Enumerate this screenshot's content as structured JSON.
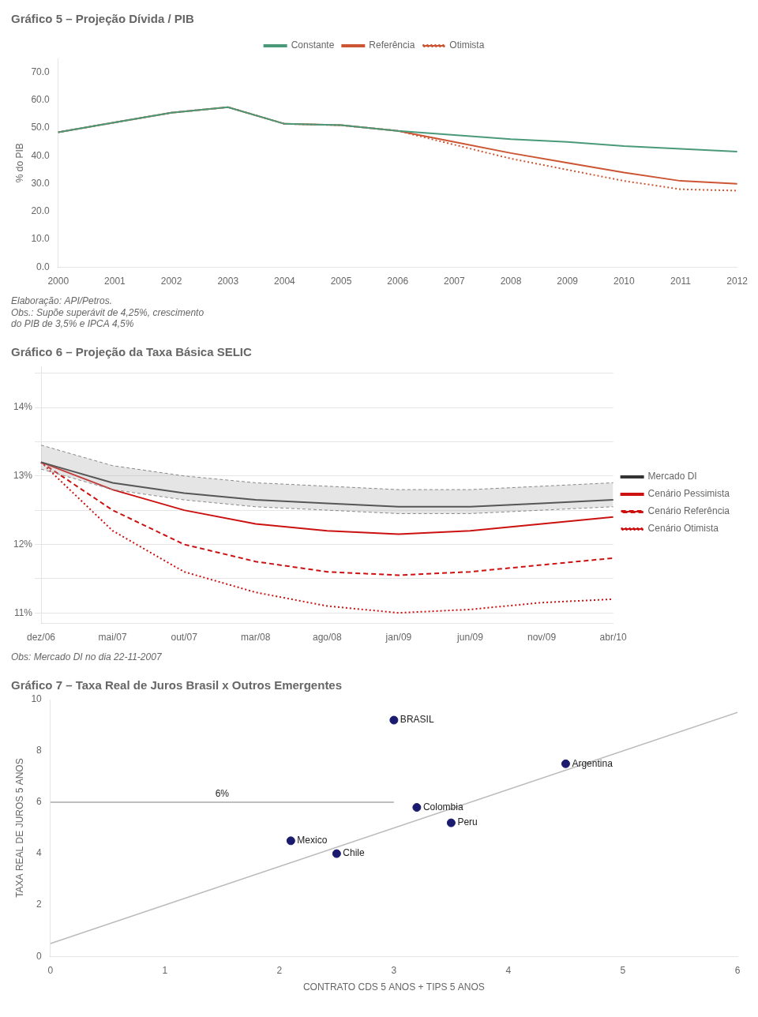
{
  "chart_data": [
    {
      "type": "line",
      "title": "Gráfico 5 – Projeção Dívida / PIB",
      "subtitle": [
        "Elaboração: API/Petros.",
        "Obs.: Supõe superávit de 4,25%, crescimento\ndo PIB de 3,5% e IPCA 4,5%"
      ],
      "ylabel": "% do PIB",
      "categories": [
        2000,
        2001,
        2002,
        2003,
        2004,
        2005,
        2006,
        2007,
        2008,
        2009,
        2010,
        2011,
        2012
      ],
      "series": [
        {
          "name": "Constante",
          "color": "#4a9a7a",
          "line_style": "solid",
          "values": [
            48.5,
            52.0,
            55.5,
            57.5,
            51.5,
            51.0,
            49.0,
            47.5,
            46.0,
            45.0,
            43.5,
            42.5,
            41.5
          ]
        },
        {
          "name": "Referência",
          "color": "#cc5533",
          "line_style": "solid",
          "values": [
            48.5,
            52.0,
            55.5,
            57.5,
            51.5,
            51.0,
            49.0,
            45.0,
            41.0,
            37.5,
            34.0,
            31.0,
            30.0
          ]
        },
        {
          "name": "Otimista",
          "color": "#cc5533",
          "line_style": "dotted",
          "values": [
            48.5,
            52.0,
            55.5,
            57.5,
            51.5,
            51.0,
            49.0,
            44.0,
            39.0,
            35.0,
            31.0,
            28.0,
            27.5
          ]
        }
      ],
      "ylim": [
        0,
        75
      ],
      "yticks": [
        {
          "value": 0,
          "label": "0.0"
        },
        {
          "value": 10,
          "label": "10.0"
        },
        {
          "value": 20,
          "label": "20.0"
        },
        {
          "value": 30,
          "label": "30.0"
        },
        {
          "value": 40,
          "label": "40.0"
        },
        {
          "value": 50,
          "label": "50.0"
        },
        {
          "value": 60,
          "label": "60.0"
        },
        {
          "value": 70,
          "label": "70.0"
        }
      ],
      "grid": false,
      "legend": "top"
    },
    {
      "type": "line",
      "title": "Gráfico 6 – Projeção da Taxa Básica SELIC",
      "subtitle": [
        "Obs: Mercado DI no dia 22-11-2007"
      ],
      "categories": [
        "dez/06",
        "mai/07",
        "out/07",
        "mar/08",
        "ago/08",
        "jan/09",
        "jun/09",
        "nov/09",
        "abr/10"
      ],
      "series": [
        {
          "name": "Mercado DI",
          "color": "#333333",
          "line_style": "solid",
          "values": [
            13.2,
            12.9,
            12.75,
            12.65,
            12.6,
            12.55,
            12.55,
            12.6,
            12.65
          ],
          "upper": [
            13.45,
            13.15,
            13.0,
            12.9,
            12.85,
            12.8,
            12.8,
            12.85,
            12.9
          ],
          "lower": [
            13.1,
            12.8,
            12.65,
            12.55,
            12.5,
            12.45,
            12.45,
            12.5,
            12.55
          ]
        },
        {
          "name": "Cenário Pessimista",
          "color": "#cc1111",
          "line_style": "solid",
          "values": [
            13.2,
            12.8,
            12.5,
            12.3,
            12.2,
            12.15,
            12.2,
            12.3,
            12.4
          ]
        },
        {
          "name": "Cenário Referência",
          "color": "#cc1111",
          "line_style": "dashed",
          "values": [
            13.2,
            12.5,
            12.0,
            11.75,
            11.6,
            11.55,
            11.6,
            11.7,
            11.8
          ]
        },
        {
          "name": "Cenário Otimista",
          "color": "#cc1111",
          "line_style": "dotted",
          "values": [
            13.2,
            12.2,
            11.6,
            11.3,
            11.1,
            11.0,
            11.05,
            11.15,
            11.2
          ]
        }
      ],
      "ylim": [
        10.85,
        14.6
      ],
      "yticks": [
        {
          "value": 11.0,
          "label": "11%"
        },
        {
          "value": 11.5,
          "label": ""
        },
        {
          "value": 12.0,
          "label": "12%"
        },
        {
          "value": 12.5,
          "label": ""
        },
        {
          "value": 13.0,
          "label": "13%"
        },
        {
          "value": 13.5,
          "label": ""
        },
        {
          "value": 14.0,
          "label": "14%"
        },
        {
          "value": 14.5,
          "label": ""
        }
      ],
      "grid": "y",
      "legend": "right"
    },
    {
      "type": "scatter",
      "title": "Gráfico 7 – Taxa Real de Juros Brasil x Outros Emergentes",
      "xlabel": "CONTRATO CDS 5 ANOS + TIPS 5 ANOS",
      "ylabel": "TAXA REAL DE JUROS 5 ANOS",
      "series": [
        {
          "type": "line",
          "color": "#bbbbbb",
          "line_style": "solid",
          "x": [
            0.0,
            6.0
          ],
          "values": [
            0.5,
            9.5
          ]
        },
        {
          "type": "line",
          "color": "#aaaaaa",
          "line_style": "solid",
          "x": [
            0.0,
            3.0
          ],
          "values": [
            6.0,
            6.0
          ],
          "label": "6%"
        },
        {
          "type": "scatter",
          "color": "#1a1a6e",
          "marker": "circle",
          "x": [
            3.0,
            4.5,
            3.2,
            3.5,
            2.1,
            2.5
          ],
          "values": [
            9.2,
            7.5,
            5.8,
            5.2,
            4.5,
            4.0
          ],
          "point_labels": [
            "BRASIL",
            "Argentina",
            "Colombia",
            "Peru",
            "Mexico",
            "Chile"
          ]
        }
      ],
      "xlim": [
        0,
        6
      ],
      "xticks": [
        0,
        1,
        2,
        3,
        4,
        5,
        6
      ],
      "ylim": [
        0,
        10
      ],
      "yticks": [
        0,
        2,
        4,
        6,
        8,
        10
      ],
      "grid": false
    }
  ]
}
